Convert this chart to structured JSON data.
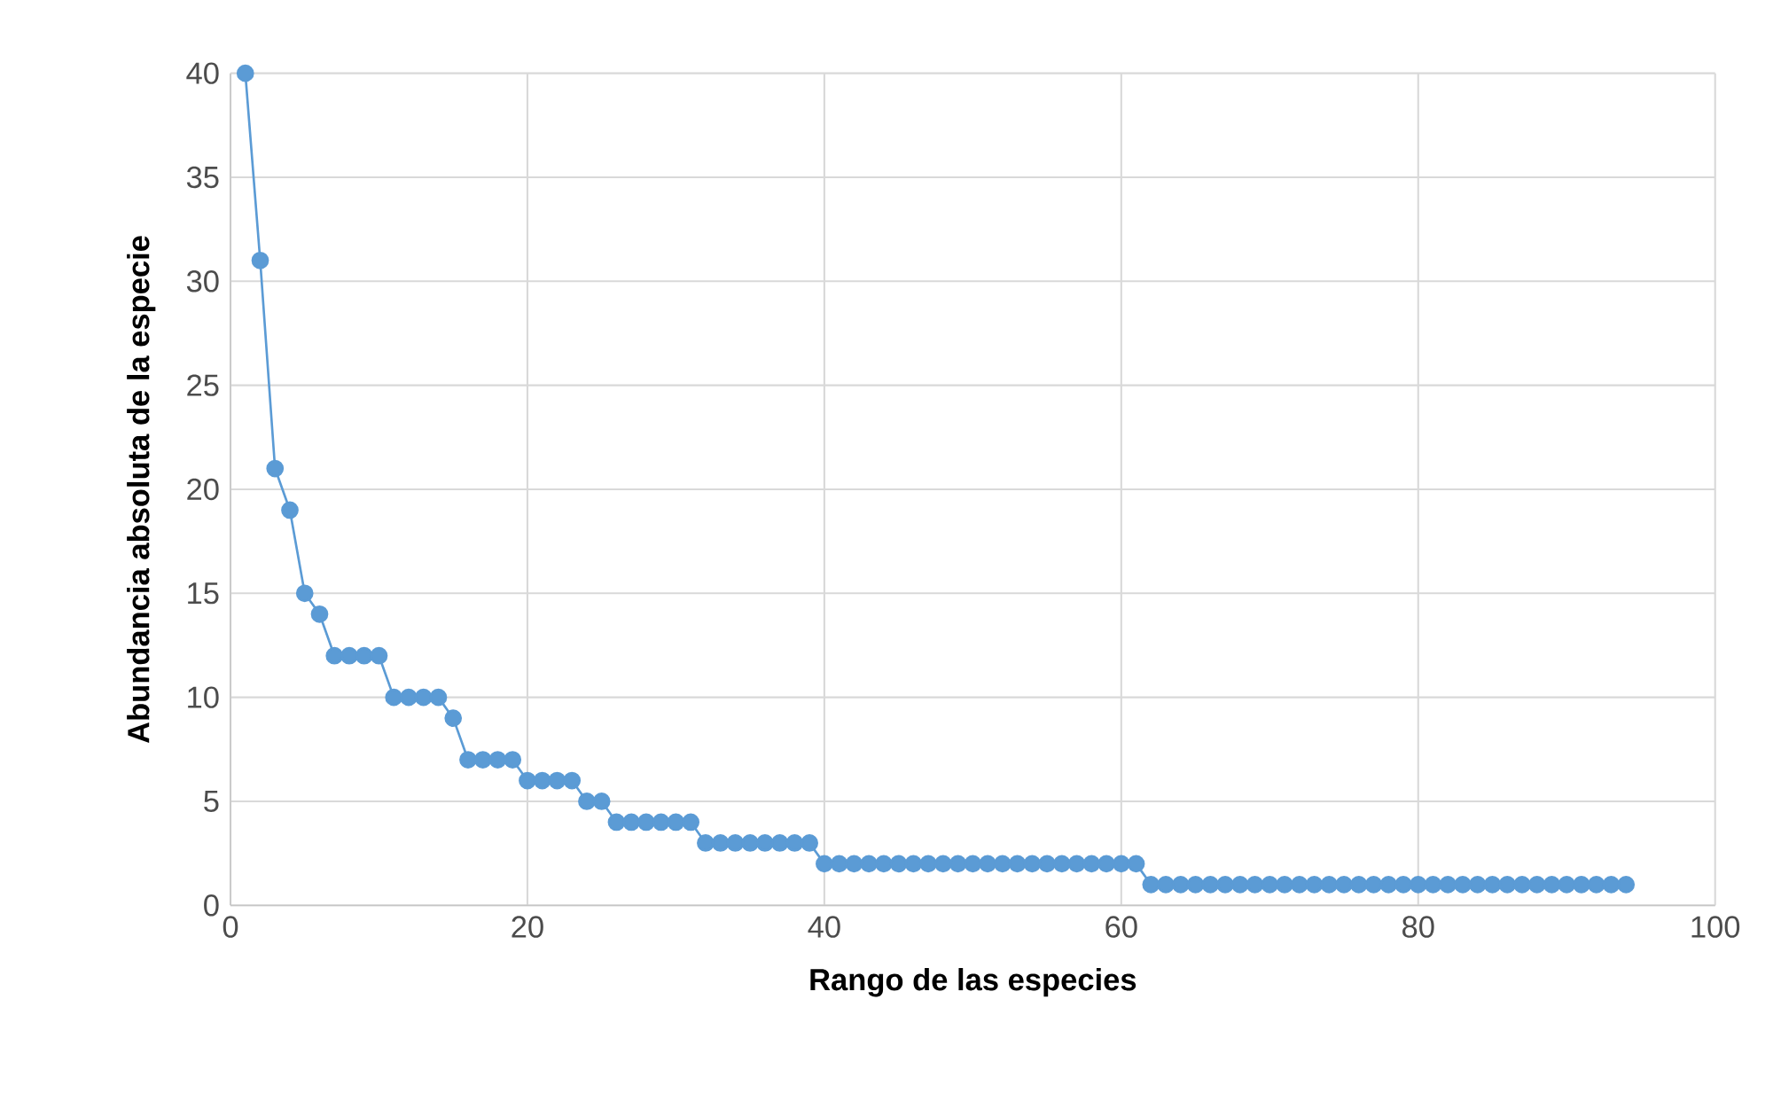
{
  "chart_data": {
    "type": "line",
    "xlabel": "Rango de las especies",
    "ylabel": "Abundancia absoluta de la especie",
    "x": [
      1,
      2,
      3,
      4,
      5,
      6,
      7,
      8,
      9,
      10,
      11,
      12,
      13,
      14,
      15,
      16,
      17,
      18,
      19,
      20,
      21,
      22,
      23,
      24,
      25,
      26,
      27,
      28,
      29,
      30,
      31,
      32,
      33,
      34,
      35,
      36,
      37,
      38,
      39,
      40,
      41,
      42,
      43,
      44,
      45,
      46,
      47,
      48,
      49,
      50,
      51,
      52,
      53,
      54,
      55,
      56,
      57,
      58,
      59,
      60,
      61,
      62,
      63,
      64,
      65,
      66,
      67,
      68,
      69,
      70,
      71,
      72,
      73,
      74,
      75,
      76,
      77,
      78,
      79,
      80,
      81,
      82,
      83,
      84,
      85,
      86,
      87,
      88,
      89,
      90,
      91,
      92,
      93,
      94
    ],
    "values": [
      40,
      31,
      21,
      19,
      15,
      14,
      12,
      12,
      12,
      12,
      10,
      10,
      10,
      10,
      9,
      7,
      7,
      7,
      7,
      6,
      6,
      6,
      6,
      5,
      5,
      4,
      4,
      4,
      4,
      4,
      4,
      3,
      3,
      3,
      3,
      3,
      3,
      3,
      3,
      2,
      2,
      2,
      2,
      2,
      2,
      2,
      2,
      2,
      2,
      2,
      2,
      2,
      2,
      2,
      2,
      2,
      2,
      2,
      2,
      2,
      2,
      1,
      1,
      1,
      1,
      1,
      1,
      1,
      1,
      1,
      1,
      1,
      1,
      1,
      1,
      1,
      1,
      1,
      1,
      1,
      1,
      1,
      1,
      1,
      1,
      1,
      1,
      1,
      1,
      1,
      1,
      1,
      1,
      1
    ],
    "color": "#5b9bd5",
    "marker": "circle",
    "line_style": "solid",
    "grid": true,
    "xlim": [
      0,
      100
    ],
    "xticks": [
      0,
      20,
      40,
      60,
      80,
      100
    ],
    "ylim": [
      0,
      40
    ],
    "yticks": [
      0,
      5,
      10,
      15,
      20,
      25,
      30,
      35,
      40
    ]
  }
}
